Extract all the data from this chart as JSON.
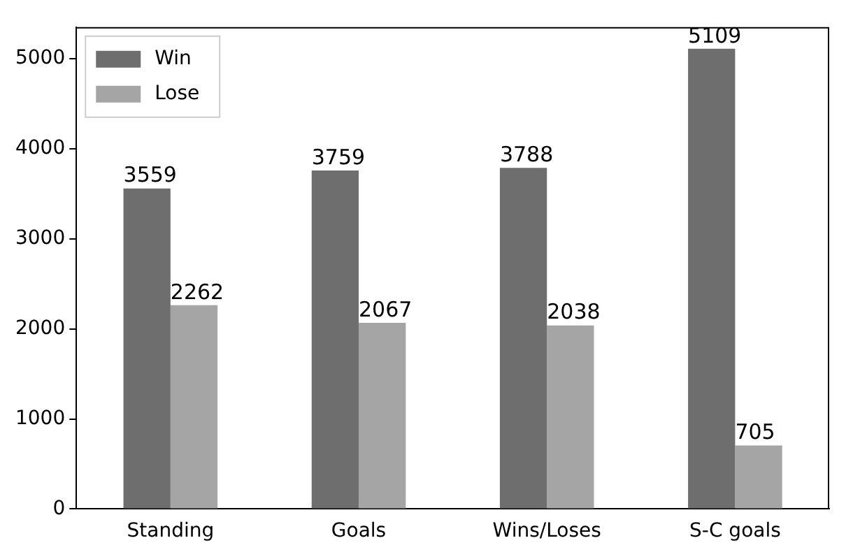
{
  "chart_data": {
    "type": "bar",
    "categories": [
      "Standing",
      "Goals",
      "Wins/Loses",
      "S-C goals"
    ],
    "series": [
      {
        "name": "Win",
        "color": "#6e6e6e",
        "values": [
          3559,
          3759,
          3788,
          5109
        ]
      },
      {
        "name": "Lose",
        "color": "#a5a5a5",
        "values": [
          2262,
          2067,
          2038,
          705
        ]
      }
    ],
    "ylim": [
      0,
      5350
    ],
    "yticks": [
      0,
      1000,
      2000,
      3000,
      4000,
      5000
    ],
    "data_labels": true,
    "legend": "top left",
    "grid": false
  }
}
